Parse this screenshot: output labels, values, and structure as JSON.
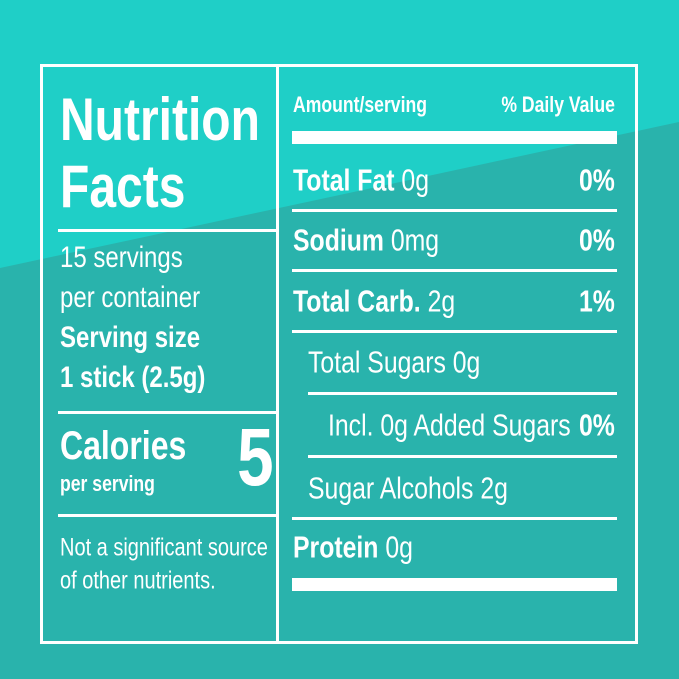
{
  "title_lines": [
    "Nutrition",
    "Facts"
  ],
  "servings": [
    "15 servings",
    "per container"
  ],
  "serving_size": [
    "Serving size",
    "1 stick (2.5g)"
  ],
  "calories": {
    "label": "Calories",
    "sublabel": "per serving",
    "value": 5
  },
  "footnote": [
    "Not a significant source",
    "of other nutrients."
  ],
  "header": {
    "amount": "Amount/serving",
    "daily_value": "% Daily Value"
  },
  "rows": [
    {
      "name": "Total Fat",
      "amount": "0g",
      "dv": "0%"
    },
    {
      "name": "Sodium",
      "amount": "0mg",
      "dv": "0%"
    },
    {
      "name": "Total Carb.",
      "amount": "2g",
      "dv": "1%"
    },
    {
      "name": "Total Sugars",
      "amount": "0g"
    },
    {
      "name": "Incl. 0g Added Sugars",
      "dv": "0%"
    },
    {
      "name": "Sugar Alcohols",
      "amount": "2g"
    },
    {
      "name": "Protein",
      "amount": "0g"
    }
  ]
}
